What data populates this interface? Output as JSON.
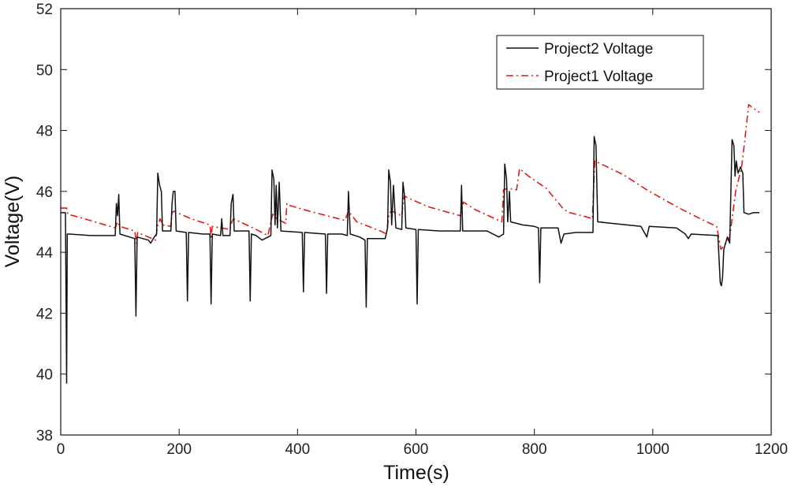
{
  "chart_data": {
    "type": "line",
    "title": "",
    "xlabel": "Time(s)",
    "ylabel": "Voltage(V)",
    "xlim": [
      0,
      1200
    ],
    "ylim": [
      38,
      52
    ],
    "xticks": [
      0,
      200,
      400,
      600,
      800,
      1000,
      1200
    ],
    "yticks": [
      38,
      40,
      42,
      44,
      46,
      48,
      50,
      52
    ],
    "xtick_labels": [
      "0",
      "200",
      "400",
      "600",
      "800",
      "1000",
      "1200"
    ],
    "ytick_labels": [
      "38",
      "40",
      "42",
      "44",
      "46",
      "48",
      "50",
      "52"
    ],
    "grid": false,
    "legend_position": "top-right",
    "series": [
      {
        "name": "Project2 Voltage",
        "color": "#111111",
        "style": "solid",
        "points": [
          [
            0,
            45.3
          ],
          [
            8,
            45.3
          ],
          [
            10,
            39.7
          ],
          [
            11,
            44.6
          ],
          [
            15,
            44.6
          ],
          [
            50,
            44.55
          ],
          [
            92,
            44.55
          ],
          [
            94,
            45.6
          ],
          [
            96,
            45.2
          ],
          [
            98,
            45.9
          ],
          [
            100,
            44.6
          ],
          [
            125,
            44.45
          ],
          [
            127,
            41.9
          ],
          [
            129,
            44.5
          ],
          [
            148,
            44.4
          ],
          [
            152,
            44.3
          ],
          [
            158,
            44.5
          ],
          [
            162,
            44.6
          ],
          [
            164,
            46.6
          ],
          [
            167,
            46.2
          ],
          [
            170,
            46.0
          ],
          [
            172,
            44.7
          ],
          [
            186,
            44.7
          ],
          [
            188,
            45.6
          ],
          [
            190,
            46.0
          ],
          [
            193,
            46.0
          ],
          [
            195,
            44.7
          ],
          [
            212,
            44.65
          ],
          [
            214,
            42.4
          ],
          [
            216,
            44.65
          ],
          [
            240,
            44.6
          ],
          [
            252,
            44.6
          ],
          [
            254,
            42.3
          ],
          [
            256,
            44.6
          ],
          [
            270,
            44.55
          ],
          [
            272,
            45.1
          ],
          [
            274,
            44.55
          ],
          [
            286,
            44.55
          ],
          [
            288,
            45.6
          ],
          [
            291,
            45.9
          ],
          [
            293,
            44.7
          ],
          [
            318,
            44.7
          ],
          [
            320,
            42.4
          ],
          [
            322,
            44.6
          ],
          [
            330,
            44.55
          ],
          [
            340,
            44.4
          ],
          [
            350,
            44.5
          ],
          [
            355,
            44.55
          ],
          [
            357,
            46.7
          ],
          [
            360,
            46.4
          ],
          [
            362,
            44.9
          ],
          [
            364,
            46.2
          ],
          [
            366,
            44.8
          ],
          [
            369,
            46.3
          ],
          [
            372,
            44.7
          ],
          [
            408,
            44.65
          ],
          [
            410,
            42.7
          ],
          [
            412,
            44.65
          ],
          [
            447,
            44.6
          ],
          [
            449,
            42.65
          ],
          [
            451,
            44.6
          ],
          [
            475,
            44.6
          ],
          [
            484,
            44.55
          ],
          [
            486,
            46.0
          ],
          [
            489,
            44.6
          ],
          [
            505,
            44.5
          ],
          [
            514,
            44.4
          ],
          [
            516,
            42.2
          ],
          [
            518,
            44.45
          ],
          [
            548,
            44.45
          ],
          [
            552,
            44.8
          ],
          [
            554,
            46.7
          ],
          [
            557,
            46.3
          ],
          [
            559,
            44.9
          ],
          [
            562,
            46.2
          ],
          [
            566,
            44.8
          ],
          [
            576,
            44.75
          ],
          [
            578,
            46.3
          ],
          [
            581,
            45.8
          ],
          [
            583,
            44.8
          ],
          [
            600,
            44.75
          ],
          [
            602,
            42.3
          ],
          [
            604,
            44.75
          ],
          [
            640,
            44.7
          ],
          [
            675,
            44.7
          ],
          [
            677,
            46.2
          ],
          [
            679,
            44.7
          ],
          [
            720,
            44.7
          ],
          [
            740,
            44.5
          ],
          [
            748,
            44.6
          ],
          [
            750,
            46.9
          ],
          [
            753,
            46.4
          ],
          [
            755,
            45.0
          ],
          [
            758,
            46.0
          ],
          [
            760,
            45.0
          ],
          [
            780,
            44.9
          ],
          [
            800,
            44.85
          ],
          [
            807,
            44.8
          ],
          [
            809,
            43.0
          ],
          [
            811,
            44.8
          ],
          [
            840,
            44.8
          ],
          [
            845,
            44.3
          ],
          [
            850,
            44.6
          ],
          [
            870,
            44.65
          ],
          [
            899,
            44.65
          ],
          [
            901,
            47.8
          ],
          [
            904,
            47.5
          ],
          [
            907,
            45.0
          ],
          [
            930,
            44.95
          ],
          [
            980,
            44.85
          ],
          [
            990,
            44.5
          ],
          [
            994,
            44.85
          ],
          [
            1040,
            44.8
          ],
          [
            1055,
            44.6
          ],
          [
            1060,
            44.45
          ],
          [
            1065,
            44.6
          ],
          [
            1110,
            44.55
          ],
          [
            1114,
            43.0
          ],
          [
            1116,
            42.9
          ],
          [
            1118,
            43.2
          ],
          [
            1120,
            44.1
          ],
          [
            1126,
            44.5
          ],
          [
            1130,
            44.3
          ],
          [
            1134,
            47.7
          ],
          [
            1137,
            47.5
          ],
          [
            1139,
            46.5
          ],
          [
            1141,
            47.0
          ],
          [
            1144,
            46.6
          ],
          [
            1148,
            46.8
          ],
          [
            1152,
            46.6
          ],
          [
            1154,
            45.3
          ],
          [
            1162,
            45.25
          ],
          [
            1170,
            45.3
          ],
          [
            1180,
            45.3
          ]
        ]
      },
      {
        "name": "Project1 Voltage",
        "color": "#dd1c1c",
        "style": "dashdot",
        "points": [
          [
            0,
            45.45
          ],
          [
            10,
            45.45
          ],
          [
            12,
            45.25
          ],
          [
            40,
            45.1
          ],
          [
            92,
            44.8
          ],
          [
            96,
            45.0
          ],
          [
            100,
            44.85
          ],
          [
            125,
            44.7
          ],
          [
            128,
            44.3
          ],
          [
            130,
            44.65
          ],
          [
            160,
            44.4
          ],
          [
            164,
            44.9
          ],
          [
            168,
            45.1
          ],
          [
            172,
            44.9
          ],
          [
            186,
            44.85
          ],
          [
            188,
            45.3
          ],
          [
            191,
            45.35
          ],
          [
            220,
            45.1
          ],
          [
            252,
            44.9
          ],
          [
            254,
            44.5
          ],
          [
            256,
            44.85
          ],
          [
            286,
            44.75
          ],
          [
            289,
            45.0
          ],
          [
            292,
            45.1
          ],
          [
            330,
            44.75
          ],
          [
            350,
            44.55
          ],
          [
            355,
            45.0
          ],
          [
            358,
            45.25
          ],
          [
            365,
            45.1
          ],
          [
            380,
            44.95
          ],
          [
            382,
            45.6
          ],
          [
            384,
            45.55
          ],
          [
            420,
            45.35
          ],
          [
            480,
            45.05
          ],
          [
            486,
            45.35
          ],
          [
            500,
            45.0
          ],
          [
            540,
            44.7
          ],
          [
            550,
            44.6
          ],
          [
            555,
            45.3
          ],
          [
            560,
            45.35
          ],
          [
            576,
            45.2
          ],
          [
            580,
            45.85
          ],
          [
            585,
            45.8
          ],
          [
            620,
            45.5
          ],
          [
            675,
            45.2
          ],
          [
            680,
            45.65
          ],
          [
            700,
            45.4
          ],
          [
            745,
            45.0
          ],
          [
            748,
            46.05
          ],
          [
            755,
            46.1
          ],
          [
            770,
            46.05
          ],
          [
            775,
            46.75
          ],
          [
            790,
            46.5
          ],
          [
            820,
            46.1
          ],
          [
            850,
            45.4
          ],
          [
            860,
            45.3
          ],
          [
            890,
            45.15
          ],
          [
            898,
            45.1
          ],
          [
            902,
            47.0
          ],
          [
            950,
            46.55
          ],
          [
            990,
            46.05
          ],
          [
            1040,
            45.5
          ],
          [
            1080,
            45.1
          ],
          [
            1108,
            44.85
          ],
          [
            1115,
            44.1
          ],
          [
            1120,
            44.2
          ],
          [
            1130,
            44.5
          ],
          [
            1140,
            46.0
          ],
          [
            1150,
            46.8
          ],
          [
            1155,
            47.6
          ],
          [
            1162,
            48.85
          ],
          [
            1168,
            48.75
          ],
          [
            1180,
            48.6
          ]
        ]
      }
    ]
  }
}
